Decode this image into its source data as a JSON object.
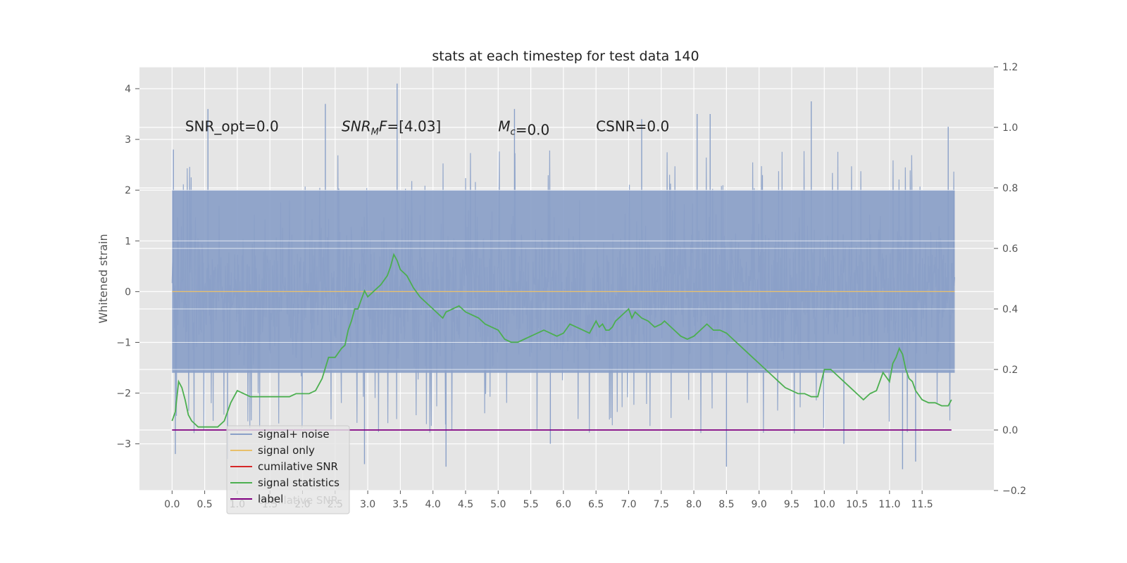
{
  "chart_data": {
    "type": "line",
    "title": "stats at each timestep for test data 140",
    "ylabel": "Whitened strain",
    "ylabel_right": "",
    "xlim": [
      -0.5,
      12.6
    ],
    "ylim": [
      -3.92,
      4.43
    ],
    "ylim_right": [
      -0.2,
      1.2
    ],
    "x_ticks": [
      0.0,
      0.5,
      1.0,
      1.5,
      2.0,
      2.5,
      3.0,
      3.5,
      4.0,
      4.5,
      5.0,
      5.5,
      6.0,
      6.5,
      7.0,
      7.5,
      8.0,
      8.5,
      9.0,
      9.5,
      10.0,
      10.5,
      11.0,
      11.5
    ],
    "x_tick_labels": [
      "0.0",
      "0.5",
      "1.0",
      "1.5",
      "2.0",
      "2.5",
      "3.0",
      "3.5",
      "4.0",
      "4.5",
      "5.0",
      "5.5",
      "6.0",
      "6.5",
      "7.0",
      "7.5",
      "8.0",
      "8.5",
      "9.0",
      "9.5",
      "10.0",
      "10.5",
      "11.0",
      "11.5"
    ],
    "y_ticks": [
      -3,
      -2,
      -1,
      0,
      1,
      2,
      3,
      4
    ],
    "y_tick_labels": [
      "−3",
      "−2",
      "−1",
      "0",
      "1",
      "2",
      "3",
      "4"
    ],
    "y_ticks_right": [
      -0.2,
      0.0,
      0.2,
      0.4,
      0.6,
      0.8,
      1.0,
      1.2
    ],
    "y_tick_labels_right": [
      "−0.2",
      "0.0",
      "0.2",
      "0.4",
      "0.6",
      "0.8",
      "1.0",
      "1.2"
    ],
    "grid": true,
    "background": "#e5e5e5",
    "annotations": [
      {
        "text": "SNR_opt=0.0",
        "x": 0.2,
        "y": 3.3
      },
      {
        "text_italic": "SNR",
        "sub": "M",
        "text_italic2": "F",
        "text": "=[4.03]",
        "x": 2.6,
        "y": 3.3
      },
      {
        "text_italic": "M",
        "sub": "c",
        "text": "=0.0",
        "x": 5.0,
        "y": 3.3
      },
      {
        "text": "CSNR=0.0",
        "x": 6.5,
        "y": 3.3
      }
    ],
    "series": [
      {
        "name": "signal+ noise",
        "axis": "left",
        "color": "#8aa0c8",
        "style": "noise",
        "x_range": [
          0.0,
          12.0
        ],
        "band_low": -1.6,
        "band_high": 2.0,
        "peaks_up": [
          [
            0.02,
            2.8
          ],
          [
            0.55,
            3.6
          ],
          [
            2.35,
            3.7
          ],
          [
            3.45,
            4.1
          ],
          [
            5.25,
            3.6
          ],
          [
            7.2,
            3.4
          ],
          [
            8.05,
            3.5
          ],
          [
            8.25,
            3.5
          ],
          [
            9.8,
            3.75
          ],
          [
            11.9,
            3.25
          ]
        ],
        "peaks_down": [
          [
            0.05,
            -3.2
          ],
          [
            0.85,
            -3.3
          ],
          [
            2.95,
            -3.4
          ],
          [
            4.2,
            -3.45
          ],
          [
            5.8,
            -3.0
          ],
          [
            8.5,
            -3.45
          ],
          [
            10.3,
            -3.0
          ],
          [
            11.4,
            -3.35
          ],
          [
            11.2,
            -3.5
          ]
        ]
      },
      {
        "name": "signal only",
        "axis": "left",
        "color": "#e8bf6a",
        "x": [
          0.0,
          12.0
        ],
        "y": [
          0.0,
          0.0
        ]
      },
      {
        "name": "cumilative SNR",
        "axis": "right",
        "color": "#d62728",
        "x": [],
        "y": []
      },
      {
        "name": "signal statistics",
        "axis": "right",
        "color": "#4caf50",
        "x": [
          0.0,
          0.05,
          0.1,
          0.15,
          0.2,
          0.25,
          0.3,
          0.35,
          0.4,
          0.5,
          0.6,
          0.7,
          0.8,
          0.9,
          1.0,
          1.1,
          1.2,
          1.3,
          1.4,
          1.5,
          1.6,
          1.7,
          1.8,
          1.9,
          2.0,
          2.1,
          2.2,
          2.3,
          2.4,
          2.5,
          2.6,
          2.65,
          2.7,
          2.75,
          2.8,
          2.85,
          2.9,
          2.95,
          3.0,
          3.05,
          3.1,
          3.2,
          3.3,
          3.35,
          3.4,
          3.45,
          3.5,
          3.55,
          3.6,
          3.65,
          3.7,
          3.8,
          3.9,
          4.0,
          4.1,
          4.15,
          4.2,
          4.3,
          4.4,
          4.5,
          4.6,
          4.7,
          4.8,
          4.9,
          5.0,
          5.1,
          5.2,
          5.3,
          5.4,
          5.5,
          5.6,
          5.7,
          5.8,
          5.9,
          6.0,
          6.1,
          6.2,
          6.3,
          6.4,
          6.5,
          6.55,
          6.6,
          6.65,
          6.7,
          6.75,
          6.8,
          6.85,
          6.9,
          7.0,
          7.05,
          7.1,
          7.2,
          7.3,
          7.4,
          7.5,
          7.55,
          7.6,
          7.7,
          7.8,
          7.9,
          8.0,
          8.1,
          8.2,
          8.3,
          8.4,
          8.5,
          8.6,
          8.7,
          8.8,
          8.9,
          9.0,
          9.1,
          9.2,
          9.3,
          9.4,
          9.5,
          9.6,
          9.7,
          9.8,
          9.9,
          10.0,
          10.1,
          10.2,
          10.3,
          10.4,
          10.5,
          10.6,
          10.7,
          10.8,
          10.9,
          11.0,
          11.05,
          11.1,
          11.15,
          11.2,
          11.25,
          11.3,
          11.35,
          11.4,
          11.5,
          11.6,
          11.7,
          11.8,
          11.9,
          11.95
        ],
        "y": [
          0.03,
          0.06,
          0.16,
          0.14,
          0.1,
          0.05,
          0.03,
          0.02,
          0.01,
          0.01,
          0.01,
          0.01,
          0.03,
          0.09,
          0.13,
          0.12,
          0.11,
          0.11,
          0.11,
          0.11,
          0.11,
          0.11,
          0.11,
          0.12,
          0.12,
          0.12,
          0.13,
          0.17,
          0.24,
          0.24,
          0.27,
          0.28,
          0.33,
          0.36,
          0.4,
          0.4,
          0.43,
          0.46,
          0.44,
          0.45,
          0.46,
          0.48,
          0.51,
          0.54,
          0.58,
          0.56,
          0.53,
          0.52,
          0.51,
          0.49,
          0.47,
          0.44,
          0.42,
          0.4,
          0.38,
          0.37,
          0.39,
          0.4,
          0.41,
          0.39,
          0.38,
          0.37,
          0.35,
          0.34,
          0.33,
          0.3,
          0.29,
          0.29,
          0.3,
          0.31,
          0.32,
          0.33,
          0.32,
          0.31,
          0.32,
          0.35,
          0.34,
          0.33,
          0.32,
          0.36,
          0.34,
          0.35,
          0.33,
          0.33,
          0.34,
          0.36,
          0.37,
          0.38,
          0.4,
          0.37,
          0.39,
          0.37,
          0.36,
          0.34,
          0.35,
          0.36,
          0.35,
          0.33,
          0.31,
          0.3,
          0.31,
          0.33,
          0.35,
          0.33,
          0.33,
          0.32,
          0.3,
          0.28,
          0.26,
          0.24,
          0.22,
          0.2,
          0.18,
          0.16,
          0.14,
          0.13,
          0.12,
          0.12,
          0.11,
          0.11,
          0.2,
          0.2,
          0.18,
          0.16,
          0.14,
          0.12,
          0.1,
          0.12,
          0.13,
          0.19,
          0.16,
          0.22,
          0.24,
          0.27,
          0.25,
          0.2,
          0.17,
          0.16,
          0.13,
          0.1,
          0.09,
          0.09,
          0.08,
          0.08,
          0.1
        ]
      },
      {
        "name": "label",
        "axis": "right",
        "color": "#800080",
        "x": [
          0.0,
          11.95
        ],
        "y": [
          0.0,
          0.0
        ]
      }
    ],
    "legend": {
      "placement": "lower-left",
      "entries": [
        {
          "label": "signal+ noise",
          "color": "#8aa0c8"
        },
        {
          "label": "signal only",
          "color": "#e8bf6a"
        },
        {
          "label": "cumilative SNR",
          "color": "#d62728"
        },
        {
          "label": "signal statistics",
          "color": "#4caf50"
        },
        {
          "label": "label",
          "color": "#800080"
        }
      ],
      "ghost_text": "cumilative SNR"
    }
  }
}
